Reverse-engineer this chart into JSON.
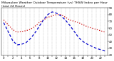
{
  "title": "Milwaukee Weather Outdoor Temperature (vs) THSW Index per Hour (Last 24 Hours)",
  "background_color": "#ffffff",
  "plot_bg_color": "#ffffff",
  "grid_color": "#888888",
  "hours": [
    0,
    1,
    2,
    3,
    4,
    5,
    6,
    7,
    8,
    9,
    10,
    11,
    12,
    13,
    14,
    15,
    16,
    17,
    18,
    19,
    20,
    21,
    22,
    23
  ],
  "temp": [
    72,
    65,
    58,
    54,
    55,
    56,
    58,
    62,
    68,
    72,
    76,
    78,
    80,
    80,
    76,
    72,
    70,
    68,
    65,
    62,
    60,
    58,
    56,
    54
  ],
  "thsw": [
    68,
    55,
    42,
    35,
    36,
    38,
    44,
    52,
    62,
    72,
    80,
    84,
    82,
    78,
    72,
    64,
    55,
    46,
    40,
    36,
    33,
    30,
    28,
    26
  ],
  "temp_color": "#cc0000",
  "thsw_color": "#0000cc",
  "ylim": [
    20,
    90
  ],
  "yticks": [
    20,
    30,
    40,
    50,
    60,
    70,
    80,
    90
  ],
  "title_fontsize": 3.2,
  "tick_fontsize": 2.8,
  "linewidth": 0.9
}
